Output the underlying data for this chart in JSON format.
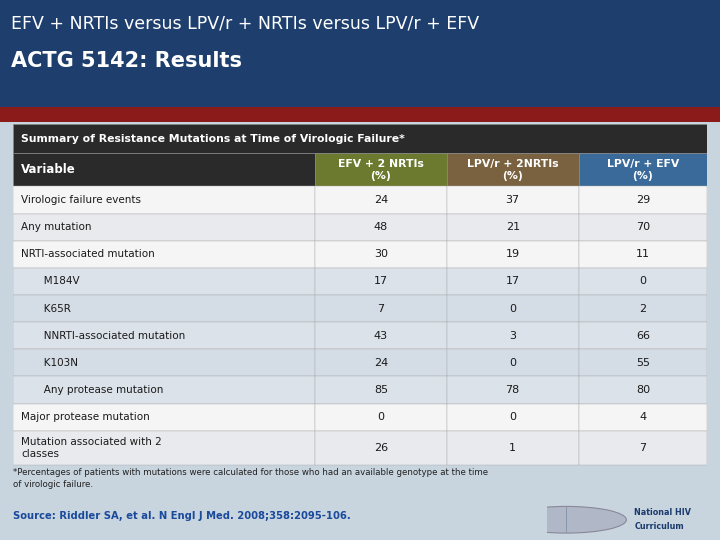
{
  "title_line1": "EFV + NRTIs versus LPV/r + NRTIs versus LPV/r + EFV",
  "title_line2": "ACTG 5142: Results",
  "header_text": "Summary of Resistance Mutations at Time of Virologic Failure*",
  "col_headers": [
    "Variable",
    "EFV + 2 NRTIs\n(%)",
    "LPV/r + 2NRTIs\n(%)",
    "LPV/r + EFV\n(%)"
  ],
  "col_header_colors": [
    "#2a2a2a",
    "#6b7a2e",
    "#7a6240",
    "#3a6a9a"
  ],
  "rows": [
    {
      "label": "Virologic failure events",
      "indent": false,
      "vals": [
        "24",
        "37",
        "29"
      ],
      "bg": "#f5f5f5"
    },
    {
      "label": "Any mutation",
      "indent": false,
      "vals": [
        "48",
        "21",
        "70"
      ],
      "bg": "#e8eaed"
    },
    {
      "label": "NRTI-associated mutation",
      "indent": false,
      "vals": [
        "30",
        "19",
        "11"
      ],
      "bg": "#f5f5f5"
    },
    {
      "label": "   M184V",
      "indent": true,
      "vals": [
        "17",
        "17",
        "0"
      ],
      "bg": "#dce2ea"
    },
    {
      "label": "   K65R",
      "indent": true,
      "vals": [
        "7",
        "0",
        "2"
      ],
      "bg": "#d4dce6"
    },
    {
      "label": "   NNRTI-associated mutation",
      "indent": true,
      "vals": [
        "43",
        "3",
        "66"
      ],
      "bg": "#dce2ea"
    },
    {
      "label": "   K103N",
      "indent": true,
      "vals": [
        "24",
        "0",
        "55"
      ],
      "bg": "#d4dce6"
    },
    {
      "label": "   Any protease mutation",
      "indent": true,
      "vals": [
        "85",
        "78",
        "80"
      ],
      "bg": "#dce2ea"
    },
    {
      "label": "Major protease mutation",
      "indent": false,
      "vals": [
        "0",
        "0",
        "4"
      ],
      "bg": "#f5f5f5"
    },
    {
      "label": "Mutation associated with 2\nclasses",
      "indent": false,
      "vals": [
        "26",
        "1",
        "7"
      ],
      "bg": "#e8eaed"
    }
  ],
  "footnote": "*Percentages of patients with mutations were calculated for those who had an available genotype at the time\nof virologic failure.",
  "source": "Source: Riddler SA, et al. N Engl J Med. 2008;358:2095-106.",
  "title_bg": "#1e3f6e",
  "red_stripe_color": "#8b1a1a",
  "title_color": "#ffffff",
  "background_color": "#c8d4de",
  "table_bg": "#f0f0f0",
  "header_bg": "#2a2a2a"
}
